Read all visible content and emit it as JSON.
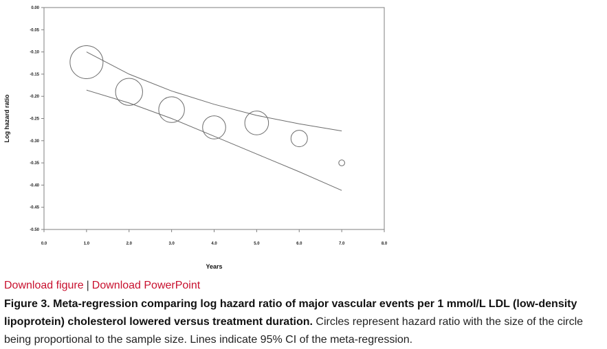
{
  "chart_data": {
    "type": "scatter",
    "xlabel": "Years",
    "ylabel": "Log hazard ratio",
    "xlim": [
      0,
      8
    ],
    "ylim": [
      -0.5,
      0
    ],
    "x_ticks": [
      "0.0",
      "1.0",
      "2.0",
      "3.0",
      "4.0",
      "5.0",
      "6.0",
      "7.0",
      "8.0"
    ],
    "y_ticks": [
      "0.00",
      "-0.05",
      "-0.10",
      "-0.15",
      "-0.20",
      "-0.25",
      "-0.30",
      "-0.35",
      "-0.40",
      "-0.45",
      "-0.50"
    ],
    "grid": false,
    "points": [
      {
        "x": 1,
        "y": -0.123,
        "relative_size": 1.0
      },
      {
        "x": 2,
        "y": -0.19,
        "relative_size": 0.82
      },
      {
        "x": 3,
        "y": -0.23,
        "relative_size": 0.78
      },
      {
        "x": 4,
        "y": -0.27,
        "relative_size": 0.7
      },
      {
        "x": 5,
        "y": -0.26,
        "relative_size": 0.72
      },
      {
        "x": 6,
        "y": -0.295,
        "relative_size": 0.5
      },
      {
        "x": 7,
        "y": -0.35,
        "relative_size": 0.18
      }
    ],
    "ci_upper": {
      "x": [
        1,
        2,
        3,
        4,
        5,
        6,
        7
      ],
      "y": [
        -0.1,
        -0.15,
        -0.188,
        -0.218,
        -0.243,
        -0.262,
        -0.278
      ]
    },
    "ci_lower": {
      "x": [
        1,
        2,
        3,
        4,
        5,
        6,
        7
      ],
      "y": [
        -0.186,
        -0.215,
        -0.25,
        -0.29,
        -0.33,
        -0.37,
        -0.412
      ]
    }
  },
  "links": {
    "download_figure": "Download figure",
    "separator": "|",
    "download_powerpoint": "Download PowerPoint"
  },
  "caption": {
    "bold": "Figure 3. Meta-regression comparing log hazard ratio of major vascular events per 1 mmol/L LDL (low-density lipoprotein) cholesterol lowered versus treatment duration.",
    "text": " Circles represent hazard ratio with the size of the circle being proportional to the sample size. Lines indicate 95% CI of the meta-regression."
  }
}
